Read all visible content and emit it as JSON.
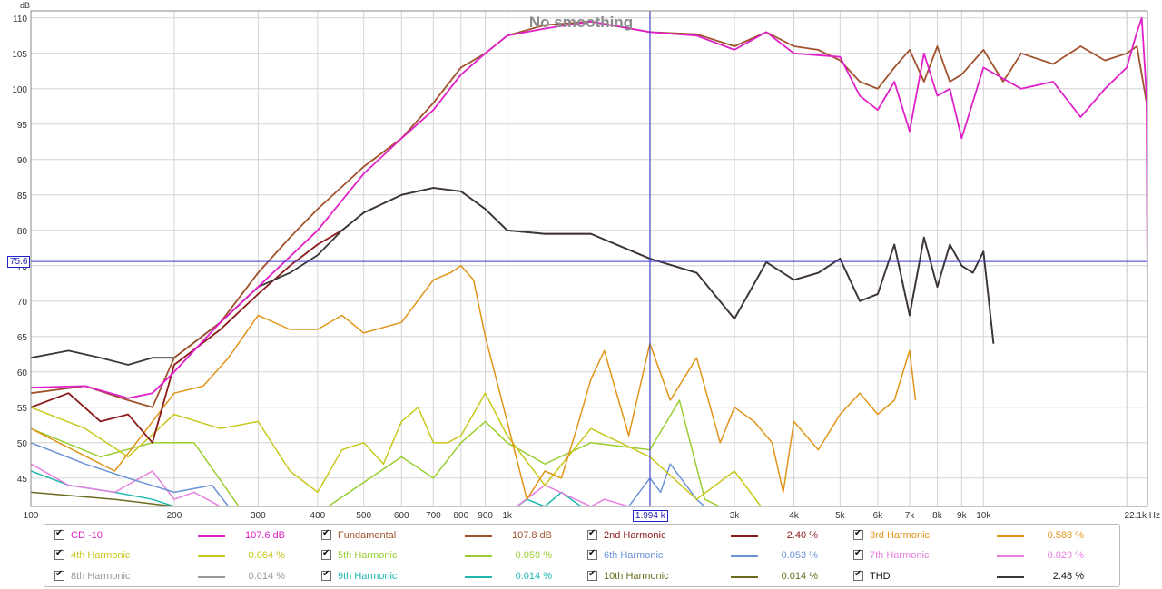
{
  "chart_data": {
    "type": "line",
    "title": "No smoothing",
    "y_unit": "dB",
    "x_unit": "Hz",
    "x_scale": "log",
    "xlim": [
      100,
      22100
    ],
    "ylim": [
      41,
      111
    ],
    "grid": true,
    "y_ticks": [
      "110",
      "105",
      "100",
      "95",
      "90",
      "85",
      "80",
      "75",
      "70",
      "65",
      "60",
      "55",
      "50",
      "45"
    ],
    "x_ticks": [
      {
        "v": 100,
        "label": "100"
      },
      {
        "v": 200,
        "label": "200"
      },
      {
        "v": 300,
        "label": "300"
      },
      {
        "v": 400,
        "label": "400"
      },
      {
        "v": 500,
        "label": "500"
      },
      {
        "v": 600,
        "label": "600"
      },
      {
        "v": 700,
        "label": "700"
      },
      {
        "v": 800,
        "label": "800"
      },
      {
        "v": 900,
        "label": "900"
      },
      {
        "v": 1000,
        "label": "1k"
      },
      {
        "v": 3000,
        "label": "3k"
      },
      {
        "v": 4000,
        "label": "4k"
      },
      {
        "v": 5000,
        "label": "5k"
      },
      {
        "v": 6000,
        "label": "6k"
      },
      {
        "v": 7000,
        "label": "7k"
      },
      {
        "v": 8000,
        "label": "8k"
      },
      {
        "v": 9000,
        "label": "9k"
      },
      {
        "v": 10000,
        "label": "10k"
      },
      {
        "v": 22100,
        "label": "22.1k Hz"
      }
    ],
    "cursor": {
      "x": 1994,
      "x_label": "1.994 k",
      "y": 75.6,
      "y_label": "75.6"
    },
    "series": [
      {
        "name": "CD -10",
        "color": "#e020c8",
        "value": "107.6 dB",
        "x": [
          100,
          130,
          160,
          180,
          200,
          250,
          300,
          400,
          500,
          600,
          700,
          800,
          900,
          1000,
          1200,
          1500,
          1994,
          2500,
          3000,
          3500,
          4000,
          5000,
          5500,
          6000,
          6500,
          7000,
          7500,
          8000,
          8500,
          9000,
          10000,
          12000,
          14000,
          16000,
          18000,
          20000,
          21000,
          21500,
          22000,
          22100
        ],
        "y": [
          57.8,
          58,
          56.3,
          57,
          60,
          67,
          72,
          80,
          88,
          93,
          97,
          102,
          105,
          107.5,
          108.5,
          109.5,
          108,
          107.5,
          105.5,
          108,
          105,
          104.5,
          99,
          97,
          101,
          94,
          105,
          99,
          100,
          93,
          103,
          100,
          101,
          96,
          100,
          103,
          108,
          110,
          99,
          70
        ]
      },
      {
        "name": "Fundamental",
        "color": "#a0522d",
        "value": "107.8 dB",
        "x": [
          100,
          130,
          160,
          180,
          200,
          250,
          300,
          350,
          400,
          500,
          600,
          700,
          800,
          900,
          1000,
          1200,
          1500,
          1994,
          2500,
          3000,
          3500,
          4000,
          4500,
          5000,
          5500,
          6000,
          6500,
          7000,
          7500,
          8000,
          8500,
          9000,
          10000,
          11000,
          12000,
          14000,
          16000,
          18000,
          20000,
          21000,
          22000,
          22100
        ],
        "y": [
          57,
          58,
          56,
          55,
          62,
          67,
          74,
          79,
          83,
          89,
          93,
          98,
          103,
          105,
          107.5,
          109,
          109.5,
          108,
          107.7,
          106,
          108,
          106,
          105.5,
          104,
          101,
          100,
          103,
          105.5,
          101,
          106,
          101,
          102,
          105.5,
          101,
          105,
          103.5,
          106,
          104,
          105,
          106,
          98,
          96
        ]
      },
      {
        "name": "2nd Harmonic",
        "color": "#8b1a1a",
        "value": "2.40 %",
        "x": [
          100,
          120,
          140,
          160,
          180,
          200,
          250,
          300,
          350,
          400,
          450,
          500,
          600,
          700,
          800,
          900,
          1000,
          1200,
          1500,
          1994,
          2500,
          3000,
          3500,
          4000,
          4500,
          5000,
          5500,
          6000,
          6500,
          7000,
          7500,
          8000,
          8500,
          9000,
          9500,
          10000,
          10500
        ],
        "y": [
          55,
          57,
          53,
          54,
          50,
          61,
          66,
          71,
          75,
          78,
          80,
          82.5,
          85,
          86,
          85.5,
          83,
          80,
          79.5,
          79.5,
          76,
          74,
          67.5,
          75.5,
          73,
          74,
          76,
          70,
          71,
          78,
          68,
          79,
          72,
          78,
          75,
          74,
          77,
          64
        ]
      },
      {
        "name": "3rd Harmonic",
        "color": "#e09418",
        "value": "0.588 %",
        "x": [
          100,
          150,
          200,
          230,
          260,
          300,
          350,
          400,
          450,
          500,
          600,
          700,
          760,
          800,
          850,
          900,
          1000,
          1100,
          1200,
          1300,
          1400,
          1500,
          1600,
          1800,
          1994,
          2200,
          2500,
          2800,
          3000,
          3300,
          3600,
          3800,
          4000,
          4500,
          5000,
          5500,
          6000,
          6500,
          7000,
          7200
        ],
        "y": [
          52,
          46,
          57,
          58,
          62,
          68,
          66,
          66,
          68,
          65.5,
          67,
          73,
          74,
          75,
          73,
          65,
          53,
          42,
          46,
          45,
          52,
          59,
          63,
          51,
          64,
          56,
          62,
          50,
          55,
          53,
          50,
          43,
          53,
          49,
          54,
          57,
          54,
          56,
          63,
          56
        ]
      },
      {
        "name": "4th Harmonic",
        "color": "#c8c81e",
        "value": "0.064 %",
        "x": [
          100,
          130,
          160,
          200,
          250,
          300,
          350,
          400,
          450,
          500,
          550,
          600,
          650,
          700,
          750,
          800,
          900,
          1000,
          1200,
          1500,
          1994,
          2500,
          3000,
          3500,
          4000
        ],
        "y": [
          55,
          52,
          48,
          54,
          52,
          53,
          46,
          43,
          49,
          50,
          47,
          53,
          55,
          50,
          50,
          51,
          57,
          51,
          44,
          52,
          48,
          42,
          46,
          40,
          40
        ]
      },
      {
        "name": "5th Harmonic",
        "color": "#9acd32",
        "value": "0.059 %",
        "x": [
          100,
          140,
          180,
          220,
          280,
          400,
          600,
          700,
          800,
          900,
          1000,
          1200,
          1500,
          1994,
          2300,
          2600,
          3000
        ],
        "y": [
          52,
          48,
          50,
          50,
          40,
          40,
          48,
          45,
          50,
          53,
          50,
          47,
          50,
          49,
          56,
          42,
          40
        ]
      },
      {
        "name": "6th Harmonic",
        "color": "#6b93d6",
        "value": "0.053 %",
        "x": [
          100,
          130,
          160,
          200,
          240,
          260,
          300,
          400,
          1500,
          1800,
          1994,
          2100,
          2200,
          2500,
          2700
        ],
        "y": [
          50,
          47,
          45,
          43,
          44,
          41,
          40,
          40,
          40,
          41,
          45,
          43,
          47,
          42,
          40
        ]
      },
      {
        "name": "7th Harmonic",
        "color": "#e67ee0",
        "value": "0.029 %",
        "x": [
          100,
          120,
          150,
          180,
          200,
          220,
          250,
          300,
          800,
          1000,
          1200,
          1500,
          1600,
          1800,
          1994
        ],
        "y": [
          47,
          44,
          43,
          46,
          42,
          43,
          41,
          40,
          40,
          40,
          44,
          41,
          42,
          41,
          40
        ]
      },
      {
        "name": "8th Harmonic",
        "color": "#999999",
        "value": "0.014 %",
        "x": [
          100,
          130,
          160,
          200,
          250,
          300,
          1000
        ],
        "y": [
          45,
          43,
          42,
          41,
          40,
          40,
          40
        ]
      },
      {
        "name": "9th Harmonic",
        "color": "#1fb8b0",
        "value": "0.014 %",
        "x": [
          100,
          120,
          150,
          180,
          200,
          250,
          1000,
          1100,
          1200,
          1300,
          1500
        ],
        "y": [
          46,
          44,
          43,
          42,
          41,
          40,
          40,
          42,
          41,
          43,
          40
        ]
      },
      {
        "name": "10th Harmonic",
        "color": "#6b6b1e",
        "value": "0.014 %",
        "x": [
          100,
          150,
          200,
          250,
          1000
        ],
        "y": [
          43,
          42,
          41,
          40,
          40
        ]
      },
      {
        "name": "THD",
        "color": "#383838",
        "value": "2.48 %",
        "x": [
          100,
          120,
          140,
          160,
          180,
          200,
          250,
          300,
          350,
          400,
          450,
          500,
          600,
          700,
          800,
          900,
          1000,
          1200,
          1500,
          1994,
          2500,
          3000,
          3500,
          4000,
          4500,
          5000,
          5500,
          6000,
          6500,
          7000,
          7500,
          8000,
          8500,
          9000,
          9500,
          10000,
          10500
        ],
        "y": [
          62,
          63,
          62,
          61,
          62,
          62,
          67,
          72,
          74,
          76.5,
          80,
          82.5,
          85,
          86,
          85.5,
          83,
          80,
          79.5,
          79.5,
          76,
          74,
          67.5,
          75.5,
          73,
          74,
          76,
          70,
          71,
          78,
          68,
          79,
          72,
          78,
          75,
          74,
          77,
          64
        ]
      }
    ]
  }
}
